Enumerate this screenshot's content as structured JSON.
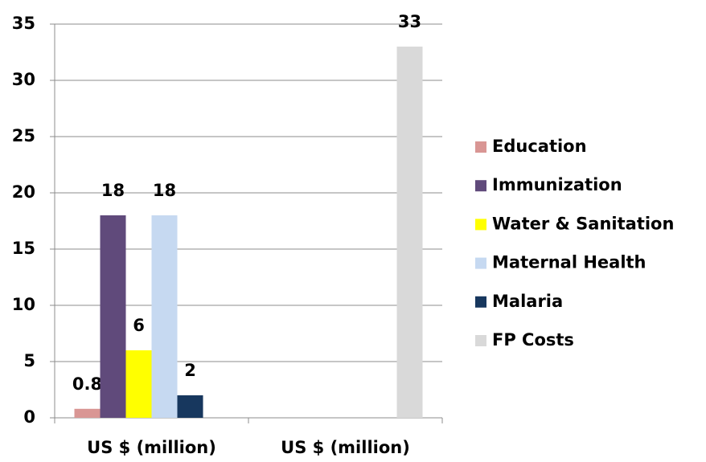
{
  "chart_data": {
    "type": "bar",
    "categories": [
      "US $ (million)",
      "US $ (million)"
    ],
    "series": [
      {
        "name": "Education",
        "color": "#d99694",
        "values": [
          0.8,
          null
        ]
      },
      {
        "name": "Immunization",
        "color": "#604a7b",
        "values": [
          18,
          null
        ]
      },
      {
        "name": "Water & Sanitation",
        "color": "#ffff00",
        "values": [
          6,
          null
        ]
      },
      {
        "name": "Maternal Health",
        "color": "#c6d9f1",
        "values": [
          18,
          null
        ]
      },
      {
        "name": "Malaria",
        "color": "#17375e",
        "values": [
          2,
          null
        ]
      },
      {
        "name": "FP Costs",
        "color": "#d9d9d9",
        "values": [
          null,
          33
        ]
      }
    ],
    "ylim": [
      0,
      35
    ],
    "yticks": [
      0,
      5,
      10,
      15,
      20,
      25,
      30,
      35
    ],
    "grid": true,
    "legend": "right"
  }
}
